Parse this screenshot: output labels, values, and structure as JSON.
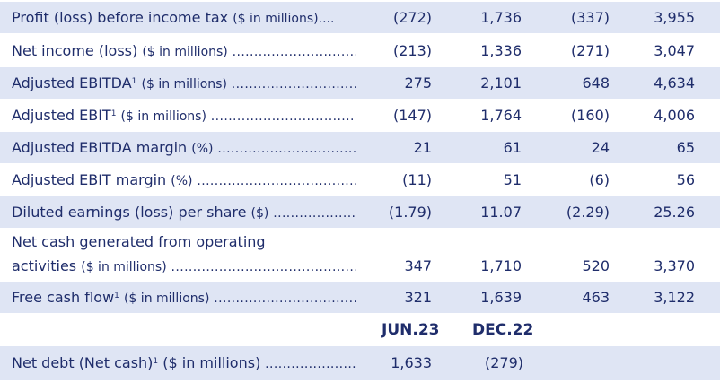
{
  "rows": [
    {
      "label": "Profit (loss) before income tax",
      "unit": "($ in millions)....",
      "sup": "",
      "values": [
        "(272)",
        "1,736",
        "(337)",
        "3,955"
      ]
    },
    {
      "label": "Net income (loss)",
      "unit": "($ in millions)",
      "sup": "",
      "values": [
        "(213)",
        "1,336",
        "(271)",
        "3,047"
      ]
    },
    {
      "label": "Adjusted EBITDA",
      "unit": "($ in millions)",
      "sup": "1",
      "values": [
        "275",
        "2,101",
        "648",
        "4,634"
      ]
    },
    {
      "label": "Adjusted EBIT",
      "unit": "($ in millions)",
      "sup": "1",
      "values": [
        "(147)",
        "1,764",
        "(160)",
        "4,006"
      ]
    },
    {
      "label": "Adjusted EBITDA margin",
      "unit": "(%)",
      "sup": "",
      "values": [
        "21",
        "61",
        "24",
        "65"
      ]
    },
    {
      "label": "Adjusted EBIT margin",
      "unit": "(%)",
      "sup": "",
      "values": [
        "(11)",
        "51",
        "(6)",
        "56"
      ]
    },
    {
      "label": "Diluted earnings (loss) per share",
      "unit": "($)",
      "sup": "",
      "values": [
        "(1.79)",
        "11.07",
        "(2.29)",
        "25.26"
      ]
    }
  ],
  "cash_row": {
    "line1": "Net cash generated from operating",
    "line2": "activities",
    "unit": "($ in millions)",
    "values": [
      "347",
      "1,710",
      "520",
      "3,370"
    ]
  },
  "fcf_row": {
    "label": "Free cash flow",
    "sup": "1",
    "unit": "($ in millions)",
    "values": [
      "321",
      "1,639",
      "463",
      "3,122"
    ]
  },
  "header2": {
    "col1": "JUN.23",
    "col2": "DEC.22"
  },
  "debt_row": {
    "label": "Net debt (Net cash)",
    "sup": "1",
    "unit": "($ in millions)",
    "values": [
      "1,633",
      "(279)"
    ]
  },
  "colors": {
    "shade": "#dfe5f4",
    "text": "#1f2d6b"
  }
}
